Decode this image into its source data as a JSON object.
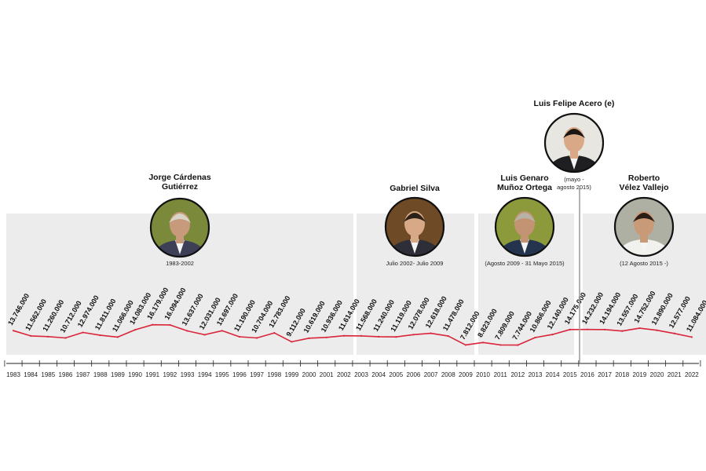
{
  "chart_data": {
    "type": "line",
    "title": "",
    "xlabel": "",
    "ylabel": "",
    "ylim": [
      6000000,
      19000000
    ],
    "grid": false,
    "line_color": "#d9263a",
    "panel_color": "#ececec",
    "x": [
      "1983",
      "1984",
      "1985",
      "1986",
      "1987",
      "1988",
      "1989",
      "1990",
      "1991",
      "1992",
      "1993",
      "1994",
      "1995",
      "1996",
      "1997",
      "1998",
      "1999",
      "2000",
      "2001",
      "2002",
      "2003",
      "2004",
      "2005",
      "2006",
      "2007",
      "2008",
      "2009",
      "2010",
      "2011",
      "2012",
      "2013",
      "2014",
      "2015",
      "2016",
      "2017",
      "2018",
      "2019",
      "2020",
      "2021",
      "2022"
    ],
    "values": [
      13746000,
      11562000,
      11260000,
      10712000,
      12974000,
      11811000,
      11066000,
      14083000,
      16179000,
      16094000,
      13637000,
      12031000,
      13697000,
      11190000,
      10704000,
      12783000,
      9112000,
      10619000,
      10936000,
      11614000,
      11568000,
      11240000,
      11119000,
      12078000,
      12618000,
      11478000,
      7812000,
      8823000,
      7809000,
      7744000,
      10866000,
      12140000,
      14175000,
      14232000,
      14194000,
      13557000,
      14752000,
      13890000,
      12577000,
      11084000
    ],
    "value_labels": [
      "13.746.000",
      "11.562.000",
      "11.260.000",
      "10.712.000",
      "12.974.000",
      "11.811.000",
      "11.066.000",
      "14.083.000",
      "16.179.000",
      "16.094.000",
      "13.637.000",
      "12.031.000",
      "13.697.000",
      "11.190.000",
      "10.704.000",
      "12.783.000",
      "9.112.000",
      "10.619.000",
      "10.936.000",
      "11.614.000",
      "11.568.000",
      "11.240.000",
      "11.119.000",
      "12.078.000",
      "12.618.000",
      "11.478.000",
      "7.812.000",
      "8.823.000",
      "7.809.000",
      "7.744.000",
      "10.866.000",
      "12.140.000",
      "14.175.000",
      "14.232.000",
      "14.194.000",
      "13.557.000",
      "14.752.000",
      "13.890.000",
      "12.577.000",
      "11.084.000"
    ],
    "periods": [
      {
        "name": [
          "Jorge Cárdenas",
          "Gutiérrez"
        ],
        "dates": [
          "1983-2002"
        ],
        "start_year": 1983,
        "end_year": 2002,
        "photo": "portrait-jorge-cardenas"
      },
      {
        "name": [
          "Gabriel Silva"
        ],
        "dates": [
          "Julio 2002- Julio 2009"
        ],
        "start_year": 2003,
        "end_year": 2009,
        "photo": "portrait-gabriel-silva"
      },
      {
        "name": [
          "Luis Genaro",
          "Muñoz Ortega"
        ],
        "dates": [
          "(Agosto 2009 - 31 Mayo 2015)"
        ],
        "start_year": 2010,
        "end_year": 2015,
        "photo": "portrait-luis-genaro-munoz"
      },
      {
        "name": [
          "Luis Felipe Acero (e)"
        ],
        "dates": [
          "(mayo -",
          "agosto 2015)"
        ],
        "start_year": 2015,
        "end_year": 2015,
        "photo": "portrait-luis-felipe-acero",
        "interim": true
      },
      {
        "name": [
          "Roberto",
          "Vélez Vallejo"
        ],
        "dates": [
          "(12 Agosto 2015 -)"
        ],
        "start_year": 2016,
        "end_year": 2022,
        "photo": "portrait-roberto-velez"
      }
    ]
  }
}
